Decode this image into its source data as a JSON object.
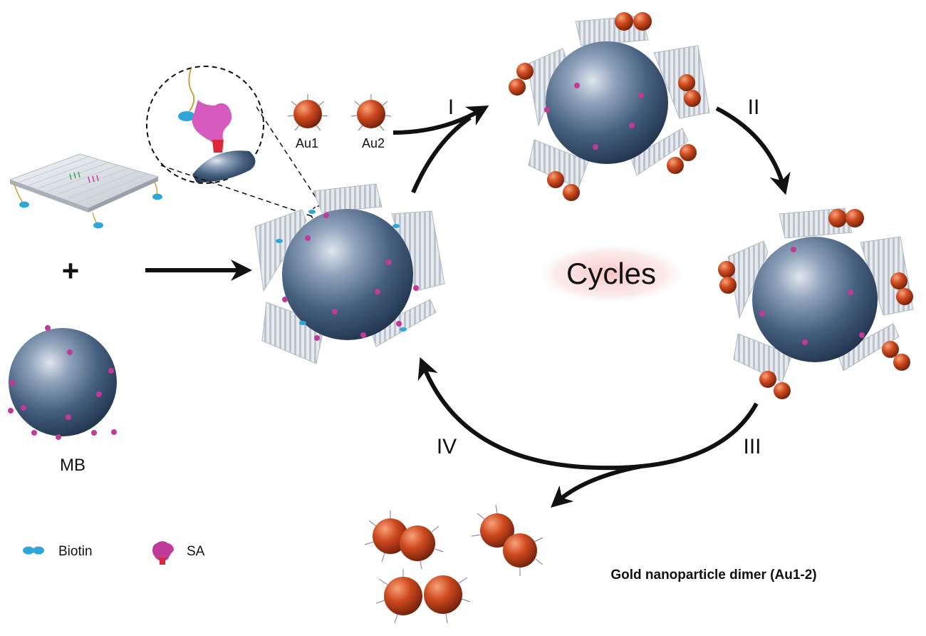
{
  "labels": {
    "plus": "+",
    "au1": "Au1",
    "au2": "Au2",
    "mb": "MB",
    "step1": "I",
    "step2": "II",
    "step3": "III",
    "step4": "IV",
    "cycles": "Cycles",
    "dimer": "Gold nanoparticle dimer (Au1-2)"
  },
  "legend": {
    "biotin": "Biotin",
    "sa": "SA"
  },
  "colors": {
    "bead": "#3d5678",
    "bead_highlight": "#c9d3df",
    "gold": "#c8431c",
    "gold_highlight": "#f08a5a",
    "biotin": "#2ea6d8",
    "sa": "#c03a9a",
    "sa_base": "#d8283a",
    "origami": "#dfe3e8",
    "arrow": "#111111",
    "cycles_glow": "#f4b7b7"
  }
}
